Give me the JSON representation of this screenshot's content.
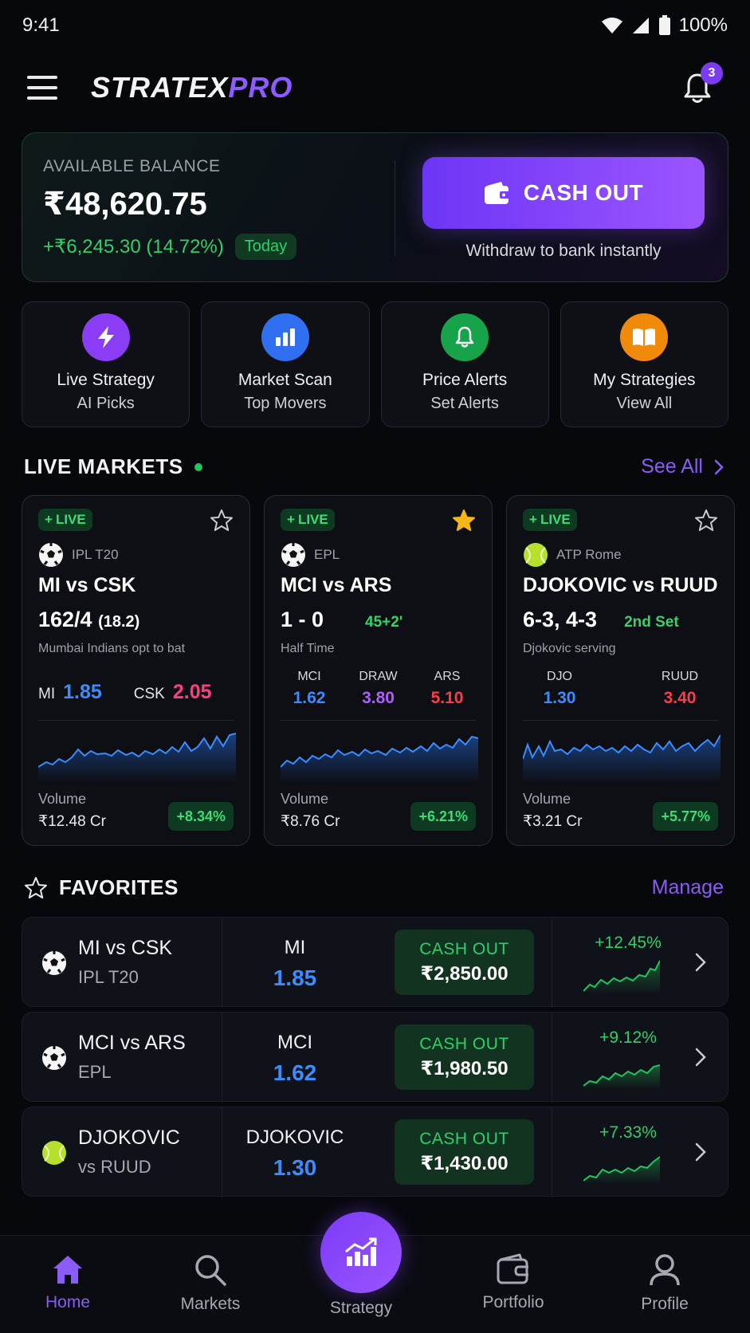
{
  "status_bar": {
    "time": "9:41",
    "battery": "100%"
  },
  "header": {
    "logo_part1": "STRATEX",
    "logo_part2": "PRO",
    "notification_count": "3"
  },
  "balance": {
    "label": "AVAILABLE BALANCE",
    "amount": "₹48,620.75",
    "change": "+₹6,245.30 (14.72%)",
    "period": "Today",
    "cashout_label": "CASH OUT",
    "cashout_sub": "Withdraw to bank instantly"
  },
  "quick_actions": [
    {
      "title": "Live Strategy",
      "sub": "AI Picks",
      "icon": "lightning-icon",
      "color": "#8b3cf5"
    },
    {
      "title": "Market Scan",
      "sub": "Top Movers",
      "icon": "bar-chart-icon",
      "color": "#2f6ff0"
    },
    {
      "title": "Price Alerts",
      "sub": "Set Alerts",
      "icon": "bell-icon",
      "color": "#16a34a"
    },
    {
      "title": "My Strategies",
      "sub": "View All",
      "icon": "book-icon",
      "color": "#f08a0a"
    }
  ],
  "live_markets": {
    "title": "LIVE MARKETS",
    "see_all": "See All",
    "cards": [
      {
        "badge": "LIVE",
        "league": "IPL T20",
        "match": "MI vs CSK",
        "score": "162/4",
        "score_extra": "(18.2)",
        "status": "Mumbai Indians opt to bat",
        "odds": [
          {
            "label": "MI",
            "value": "1.85"
          },
          {
            "label": "CSK",
            "value": "2.05"
          }
        ],
        "volume_label": "Volume",
        "volume": "₹12.48 Cr",
        "change": "+8.34%",
        "starred": false
      },
      {
        "badge": "LIVE",
        "league": "EPL",
        "match": "MCI vs ARS",
        "score": "1 - 0",
        "score_extra": "45+2'",
        "status": "Half Time",
        "odds": [
          {
            "label": "MCI",
            "value": "1.62"
          },
          {
            "label": "DRAW",
            "value": "3.80"
          },
          {
            "label": "ARS",
            "value": "5.10"
          }
        ],
        "volume_label": "Volume",
        "volume": "₹8.76 Cr",
        "change": "+6.21%",
        "starred": true
      },
      {
        "badge": "LIVE",
        "league": "ATP Rome",
        "match": "DJOKOVIC vs RUUD",
        "score": "6-3, 4-3",
        "score_extra": "2nd Set",
        "status": "Djokovic serving",
        "odds": [
          {
            "label": "DJO",
            "value": "1.30"
          },
          {
            "label": "RUUD",
            "value": "3.40"
          }
        ],
        "volume_label": "Volume",
        "volume": "₹3.21 Cr",
        "change": "+5.77%",
        "starred": false
      }
    ]
  },
  "favorites": {
    "title": "FAVORITES",
    "manage": "Manage",
    "rows": [
      {
        "match": "MI vs CSK",
        "league": "IPL T20",
        "pick": "MI",
        "odd": "1.85",
        "cashout_label": "CASH OUT",
        "cashout": "₹2,850.00",
        "change": "+12.45%",
        "sport": "cricket"
      },
      {
        "match": "MCI vs ARS",
        "league": "EPL",
        "pick": "MCI",
        "odd": "1.62",
        "cashout_label": "CASH OUT",
        "cashout": "₹1,980.50",
        "change": "+9.12%",
        "sport": "football"
      },
      {
        "match": "DJOKOVIC",
        "league": "vs RUUD",
        "pick": "DJOKOVIC",
        "odd": "1.30",
        "cashout_label": "CASH OUT",
        "cashout": "₹1,430.00",
        "change": "+7.33%",
        "sport": "tennis"
      }
    ]
  },
  "bottom_nav": [
    {
      "label": "Home",
      "icon": "home-icon",
      "active": true
    },
    {
      "label": "Markets",
      "icon": "search-icon",
      "active": false
    },
    {
      "label": "Strategy",
      "icon": "strategy-chart-icon",
      "active": false
    },
    {
      "label": "Portfolio",
      "icon": "wallet-icon",
      "active": false
    },
    {
      "label": "Profile",
      "icon": "user-icon",
      "active": false
    }
  ],
  "colors": {
    "accent": "#8b5cf6",
    "positive": "#2fd06a",
    "odds_blue": "#3b8cff",
    "background": "#07080c"
  }
}
